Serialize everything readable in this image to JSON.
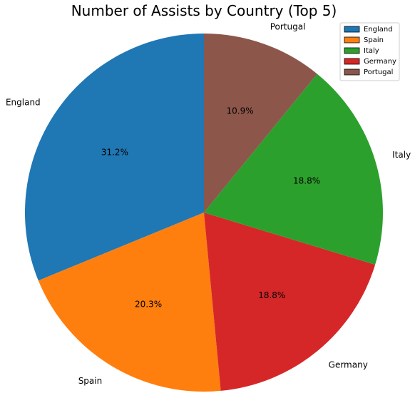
{
  "chart_data": {
    "type": "pie",
    "title": "Number of Assists by Country (Top 5)",
    "categories": [
      "England",
      "Spain",
      "Italy",
      "Germany",
      "Portugal"
    ],
    "values": [
      31.2,
      20.3,
      18.8,
      18.8,
      10.9
    ],
    "value_labels": [
      "31.2%",
      "20.3%",
      "18.8%",
      "18.8%",
      "10.9%"
    ],
    "slice_order": [
      "England",
      "Spain",
      "Germany",
      "Italy",
      "Portugal"
    ],
    "colors": {
      "England": "#1f77b4",
      "Spain": "#ff7f0e",
      "Italy": "#2ca02c",
      "Germany": "#d62728",
      "Portugal": "#8c564b"
    },
    "start_angle_deg": 90,
    "direction": "counterclockwise",
    "legend": {
      "placement": "top-right",
      "entries": [
        "England",
        "Spain",
        "Italy",
        "Germany",
        "Portugal"
      ]
    }
  }
}
